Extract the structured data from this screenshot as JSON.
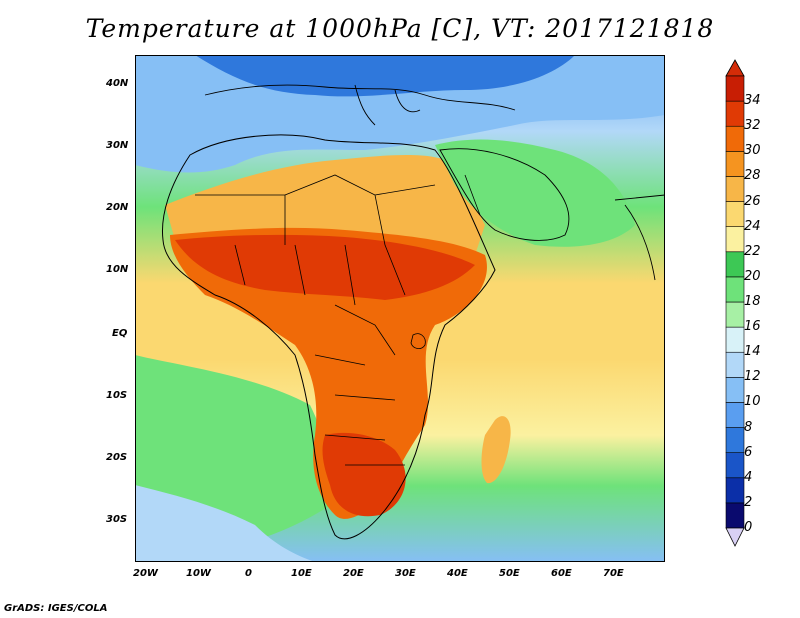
{
  "title": "Temperature at 1000hPa [C], VT: 2017121818",
  "footer": "GrADS: IGES/COLA",
  "map": {
    "lat_labels": [
      "40N",
      "30N",
      "20N",
      "10N",
      "EQ",
      "10S",
      "20S",
      "30S"
    ],
    "lon_labels": [
      "20W",
      "10W",
      "0",
      "10E",
      "20E",
      "30E",
      "40E",
      "50E",
      "60E",
      "70E"
    ]
  },
  "colorbar": {
    "levels": [
      "0",
      "2",
      "4",
      "6",
      "8",
      "10",
      "12",
      "14",
      "16",
      "18",
      "20",
      "22",
      "24",
      "26",
      "28",
      "30",
      "32",
      "34"
    ],
    "colors": [
      "#0a0a6e",
      "#0b2fa8",
      "#1a55c8",
      "#2f78dc",
      "#5a9ef0",
      "#86bff5",
      "#b2d8f8",
      "#d8f2f8",
      "#a7f0a5",
      "#6ee27a",
      "#3dc855",
      "#fbf1a0",
      "#fbd870",
      "#f7b648",
      "#f59420",
      "#f06a08",
      "#e03a05",
      "#c81e04"
    ],
    "under_color": "#d8d0f4",
    "over_color": "#d42c08"
  }
}
